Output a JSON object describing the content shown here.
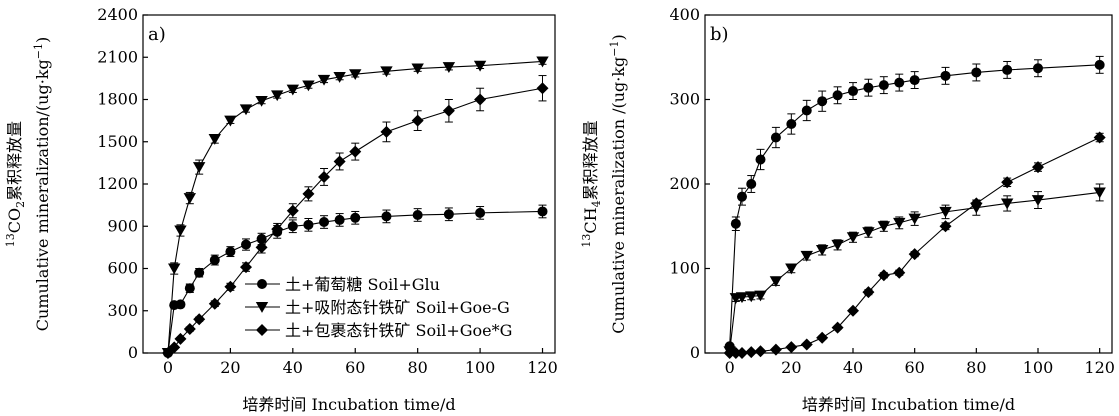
{
  "chart_data": [
    {
      "type": "line",
      "panel_label": "a)",
      "xlabel": "培养时间 Incubation time/d",
      "ylabel_cn": "13CO2累积释放量",
      "ylabel_en": "Cumulative mineralization/(ug·kg-1)",
      "ylabel_parts": {
        "sup13": "13",
        "pre": "CO",
        "sub": "2",
        "cn": "累积释放量",
        "en": "Cumulative mineralization/(ug·kg",
        "sup": "−1",
        "close": ")"
      },
      "xlim": [
        -8,
        124
      ],
      "ylim": [
        0,
        2400
      ],
      "xticks": [
        0,
        20,
        40,
        60,
        80,
        100,
        120
      ],
      "yticks": [
        0,
        300,
        600,
        900,
        1200,
        1500,
        1800,
        2100,
        2400
      ],
      "legend_position": "lower-right",
      "series": [
        {
          "name": "土+葡萄糖 Soil+Glu",
          "marker": "circle",
          "x": [
            0,
            2,
            4,
            7,
            10,
            15,
            20,
            25,
            30,
            35,
            40,
            45,
            50,
            55,
            60,
            70,
            80,
            90,
            100,
            120
          ],
          "y": [
            0,
            340,
            345,
            460,
            570,
            660,
            720,
            770,
            810,
            860,
            900,
            910,
            930,
            945,
            960,
            970,
            980,
            985,
            995,
            1005
          ],
          "err": [
            0,
            20,
            20,
            30,
            30,
            35,
            35,
            40,
            40,
            45,
            45,
            45,
            45,
            45,
            45,
            45,
            45,
            45,
            45,
            45
          ]
        },
        {
          "name": "土+吸附态针铁矿 Soil+Goe-G",
          "marker": "triangle-down",
          "x": [
            0,
            2,
            4,
            7,
            10,
            15,
            20,
            25,
            30,
            35,
            40,
            45,
            50,
            55,
            60,
            70,
            80,
            90,
            100,
            120
          ],
          "y": [
            0,
            600,
            870,
            1100,
            1320,
            1520,
            1650,
            1730,
            1790,
            1830,
            1870,
            1900,
            1940,
            1960,
            1980,
            2000,
            2020,
            2030,
            2040,
            2070
          ],
          "err": [
            0,
            40,
            40,
            40,
            50,
            30,
            20,
            20,
            20,
            20,
            20,
            20,
            20,
            20,
            20,
            20,
            20,
            20,
            20,
            20
          ]
        },
        {
          "name": "土+包裹态针铁矿 Soil+Goe*G",
          "marker": "diamond",
          "x": [
            0,
            2,
            4,
            7,
            10,
            15,
            20,
            25,
            30,
            35,
            40,
            45,
            50,
            55,
            60,
            70,
            80,
            90,
            100,
            120
          ],
          "y": [
            0,
            40,
            100,
            170,
            240,
            350,
            470,
            610,
            750,
            880,
            1010,
            1130,
            1250,
            1360,
            1430,
            1570,
            1650,
            1720,
            1800,
            1880
          ],
          "err": [
            0,
            10,
            10,
            15,
            15,
            20,
            25,
            30,
            40,
            40,
            50,
            50,
            60,
            60,
            60,
            70,
            70,
            80,
            80,
            90
          ]
        }
      ]
    },
    {
      "type": "line",
      "panel_label": "b)",
      "xlabel": "培养时间 Incubation time/d",
      "ylabel_cn": "13CH4累积释放量",
      "ylabel_en": "Cumulative mineralization /(ug·kg-1)",
      "ylabel_parts": {
        "sup13": "13",
        "pre": "CH",
        "sub": "4",
        "cn": "累积释放量",
        "en": "Cumulative mineralization /(ug·kg",
        "sup": "−1",
        "close": ")"
      },
      "xlim": [
        -8,
        124
      ],
      "ylim": [
        0,
        400
      ],
      "xticks": [
        0,
        20,
        40,
        60,
        80,
        100,
        120
      ],
      "yticks": [
        0,
        100,
        200,
        300,
        400
      ],
      "series": [
        {
          "name": "土+葡萄糖 Soil+Glu",
          "marker": "circle",
          "x": [
            0,
            2,
            4,
            7,
            10,
            15,
            20,
            25,
            30,
            35,
            40,
            45,
            50,
            55,
            60,
            70,
            80,
            90,
            100,
            120
          ],
          "y": [
            8,
            153,
            185,
            200,
            229,
            255,
            271,
            287,
            298,
            305,
            310,
            314,
            317,
            320,
            323,
            328,
            332,
            335,
            337,
            341
          ],
          "err": [
            0,
            8,
            10,
            10,
            12,
            12,
            12,
            12,
            12,
            10,
            10,
            10,
            10,
            10,
            10,
            10,
            10,
            10,
            10,
            10
          ]
        },
        {
          "name": "土+吸附态针铁矿 Soil+Goe-G",
          "marker": "triangle-down",
          "x": [
            0,
            2,
            4,
            7,
            10,
            15,
            20,
            25,
            30,
            35,
            40,
            45,
            50,
            55,
            60,
            70,
            80,
            90,
            100,
            120
          ],
          "y": [
            2,
            65,
            66,
            67,
            68,
            85,
            100,
            115,
            122,
            128,
            137,
            143,
            150,
            154,
            159,
            167,
            172,
            177,
            181,
            190
          ],
          "err": [
            0,
            4,
            4,
            4,
            4,
            5,
            5,
            5,
            6,
            6,
            6,
            6,
            6,
            7,
            8,
            8,
            9,
            9,
            10,
            10
          ]
        },
        {
          "name": "土+包裹态针铁矿 Soil+Goe*G",
          "marker": "diamond",
          "x": [
            0,
            2,
            4,
            7,
            10,
            15,
            20,
            25,
            30,
            35,
            40,
            45,
            50,
            55,
            60,
            70,
            80,
            90,
            100,
            120
          ],
          "y": [
            0,
            0,
            0,
            1,
            2,
            4,
            7,
            10,
            18,
            30,
            50,
            72,
            92,
            95,
            117,
            150,
            177,
            202,
            220,
            255
          ],
          "err": [
            0,
            0,
            0,
            0,
            0,
            1,
            1,
            1,
            2,
            2,
            2,
            3,
            3,
            3,
            3,
            4,
            4,
            5,
            5,
            5
          ]
        }
      ]
    }
  ]
}
